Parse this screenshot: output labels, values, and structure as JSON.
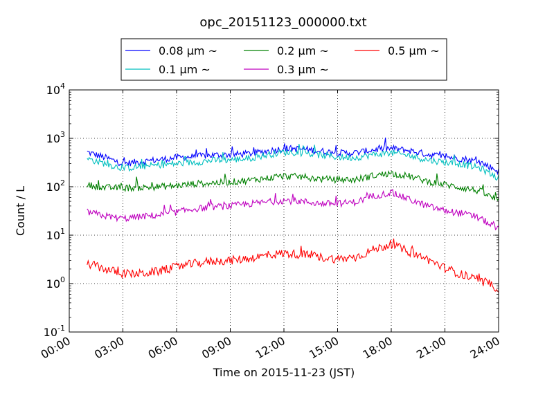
{
  "chart_data": {
    "type": "line",
    "title": "opc_20151123_000000.txt",
    "xlabel": "Time on 2015-11-23 (JST)",
    "ylabel": "Count / L",
    "xlim": [
      "00:00",
      "24:00"
    ],
    "ylim": [
      0.1,
      10000
    ],
    "y_scale": "log",
    "grid": true,
    "legend_position": "top-center",
    "x_ticks": [
      "00:00",
      "03:00",
      "06:00",
      "09:00",
      "12:00",
      "15:00",
      "18:00",
      "21:00",
      "24:00"
    ],
    "y_ticks": [
      {
        "base": "10",
        "exp": "-1",
        "value": 0.1
      },
      {
        "base": "10",
        "exp": "0",
        "value": 1
      },
      {
        "base": "10",
        "exp": "1",
        "value": 10
      },
      {
        "base": "10",
        "exp": "2",
        "value": 100
      },
      {
        "base": "10",
        "exp": "3",
        "value": 1000
      },
      {
        "base": "10",
        "exp": "4",
        "value": 10000
      }
    ],
    "x": [
      "01:00",
      "02:00",
      "03:00",
      "04:00",
      "05:00",
      "06:00",
      "07:00",
      "08:00",
      "09:00",
      "10:00",
      "11:00",
      "12:00",
      "13:00",
      "14:00",
      "15:00",
      "16:00",
      "17:00",
      "18:00",
      "19:00",
      "20:00",
      "21:00",
      "22:00",
      "23:00",
      "24:00"
    ],
    "series": [
      {
        "name": "0.08 μm ~",
        "color": "#0000ff",
        "values": [
          520,
          400,
          300,
          330,
          360,
          400,
          420,
          450,
          460,
          480,
          540,
          620,
          600,
          550,
          500,
          500,
          580,
          620,
          560,
          470,
          420,
          380,
          320,
          210
        ]
      },
      {
        "name": "0.1 μm ~",
        "color": "#00bfbf",
        "values": [
          380,
          300,
          240,
          260,
          280,
          300,
          320,
          350,
          360,
          380,
          450,
          520,
          500,
          450,
          410,
          400,
          460,
          500,
          440,
          360,
          320,
          290,
          240,
          150
        ]
      },
      {
        "name": "0.2 μm ~",
        "color": "#008000",
        "values": [
          110,
          95,
          95,
          95,
          100,
          105,
          115,
          120,
          125,
          135,
          150,
          165,
          160,
          145,
          140,
          140,
          170,
          190,
          165,
          130,
          110,
          95,
          80,
          50
        ]
      },
      {
        "name": "0.3 μm ~",
        "color": "#bf00bf",
        "values": [
          30,
          25,
          22,
          24,
          26,
          30,
          35,
          38,
          40,
          44,
          48,
          52,
          50,
          45,
          45,
          48,
          65,
          75,
          55,
          40,
          32,
          28,
          22,
          13
        ]
      },
      {
        "name": "0.5 μm ~",
        "color": "#ff0000",
        "values": [
          2.6,
          2.0,
          1.6,
          1.6,
          1.8,
          2.2,
          2.6,
          2.9,
          3.0,
          3.3,
          3.8,
          4.2,
          4.0,
          3.5,
          3.2,
          3.5,
          5.0,
          6.5,
          4.5,
          3.2,
          2.1,
          1.5,
          1.1,
          0.8
        ]
      }
    ]
  }
}
